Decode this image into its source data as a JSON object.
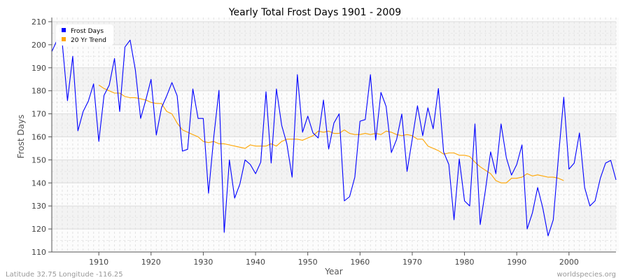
{
  "chart_data": {
    "type": "line",
    "title": "Yearly Total Frost Days 1901 - 2009",
    "xlabel": "Year",
    "ylabel": "Frost Days",
    "xlim": [
      1901,
      2009
    ],
    "ylim": [
      110,
      210
    ],
    "xticks": [
      1910,
      1920,
      1930,
      1940,
      1950,
      1960,
      1970,
      1980,
      1990,
      2000
    ],
    "yticks": [
      110,
      120,
      130,
      140,
      150,
      160,
      170,
      180,
      190,
      200,
      210
    ],
    "grid": true,
    "legend_position": "top-left",
    "series": [
      {
        "name": "Frost Days",
        "color": "#0000ff",
        "x_start": 1901,
        "values": [
          197,
          202,
          201,
          175.7,
          195,
          162.6,
          171,
          175.5,
          183,
          158,
          178,
          182.5,
          194,
          171,
          199,
          202,
          189,
          168,
          176,
          185,
          160.8,
          172.6,
          177.8,
          183.6,
          177.8,
          153.8,
          154.6,
          180.8,
          168,
          168,
          135.5,
          160,
          180.2,
          118.5,
          150,
          133.4,
          139.5,
          150,
          148,
          144,
          149,
          179.6,
          148.6,
          180.8,
          165,
          157,
          142.5,
          187,
          162,
          169,
          161.7,
          159.5,
          176,
          154.7,
          166,
          170,
          132.2,
          134,
          142.5,
          166.8,
          167.5,
          187,
          158.6,
          179.3,
          173.2,
          153.2,
          158.9,
          169.9,
          145,
          159,
          173.5,
          160.5,
          172.6,
          163.5,
          181,
          153.5,
          148,
          124,
          150.4,
          132.2,
          130,
          165.6,
          121.9,
          136.7,
          153.5,
          144,
          165.6,
          151,
          143.4,
          148,
          156.5,
          120,
          127,
          138,
          129,
          117,
          124,
          151.6,
          177.2,
          146,
          148.6,
          161.7,
          138,
          130,
          132.2,
          142,
          148.6,
          149.8,
          141.3
        ]
      },
      {
        "name": "20 Yr Trend",
        "color": "#ffa500",
        "x_start": 1910,
        "values": [
          182.5,
          181,
          180,
          179,
          179,
          177.5,
          177,
          177,
          176.5,
          176,
          175,
          174.5,
          174.5,
          171,
          170,
          166,
          163,
          162,
          161,
          160,
          158,
          157.5,
          158,
          157,
          157,
          156.5,
          156,
          155.5,
          155,
          156.5,
          156,
          156,
          156,
          157,
          156,
          158,
          159,
          159,
          159,
          158.5,
          159.5,
          160.5,
          162.5,
          162,
          162.5,
          161.5,
          161.5,
          163,
          161.5,
          161,
          161,
          161.5,
          161,
          161.5,
          161,
          162.5,
          162,
          161,
          160.5,
          161,
          160.5,
          159,
          159,
          156,
          155,
          154,
          152.5,
          153,
          153,
          152,
          152,
          151.5,
          149,
          147,
          145.5,
          144,
          141,
          140,
          140,
          142,
          142,
          142.5,
          144,
          143,
          143.5,
          143,
          142.5,
          142.5,
          142,
          141
        ]
      }
    ]
  },
  "footer": {
    "location": "Latitude 32.75 Longitude -116.25",
    "source": "worldspecies.org"
  }
}
